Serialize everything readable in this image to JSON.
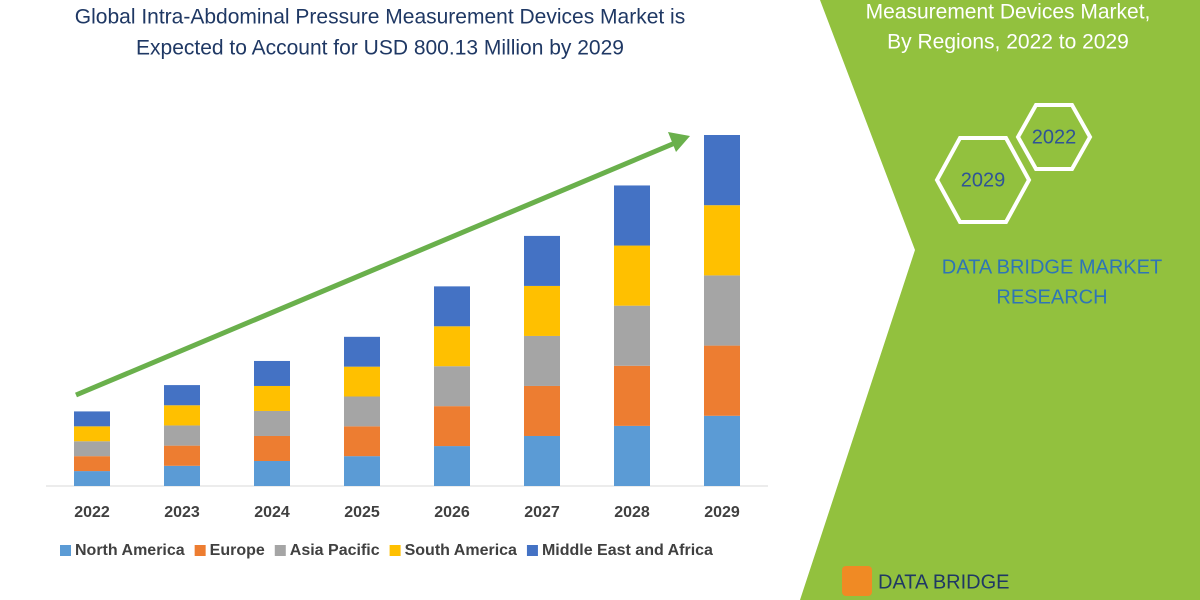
{
  "chart_data": {
    "type": "stacked_bar",
    "title": [
      "Global Intra-Abdominal Pressure Measurement Devices Market is",
      "Expected to Account for USD 800.13 Million by 2029"
    ],
    "categories": [
      "2022",
      "2023",
      "2024",
      "2025",
      "2026",
      "2027",
      "2028",
      "2029"
    ],
    "series": [
      {
        "name": "North America",
        "color": "#5b9bd5",
        "values": [
          34,
          46,
          57,
          68,
          91,
          114,
          137,
          160
        ]
      },
      {
        "name": "Europe",
        "color": "#ed7d31",
        "values": [
          34,
          46,
          57,
          68,
          91,
          114,
          137,
          160
        ]
      },
      {
        "name": "Asia Pacific",
        "color": "#a5a5a5",
        "values": [
          34,
          46,
          57,
          68,
          91,
          114,
          137,
          160
        ]
      },
      {
        "name": "South America",
        "color": "#ffc000",
        "values": [
          34,
          46,
          57,
          68,
          91,
          114,
          137,
          160
        ]
      },
      {
        "name": "Middle East and Africa",
        "color": "#4472c4",
        "values": [
          34,
          46,
          57,
          68,
          91,
          114,
          137,
          160
        ]
      }
    ]
  },
  "side_panel": {
    "heading": [
      "Measurement Devices Market,",
      "By Regions, 2022 to 2029"
    ],
    "hexagons": [
      "2029",
      "2022"
    ],
    "brand": [
      "DATA BRIDGE MARKET",
      "RESEARCH"
    ],
    "logo": "DATA BRIDGE"
  }
}
